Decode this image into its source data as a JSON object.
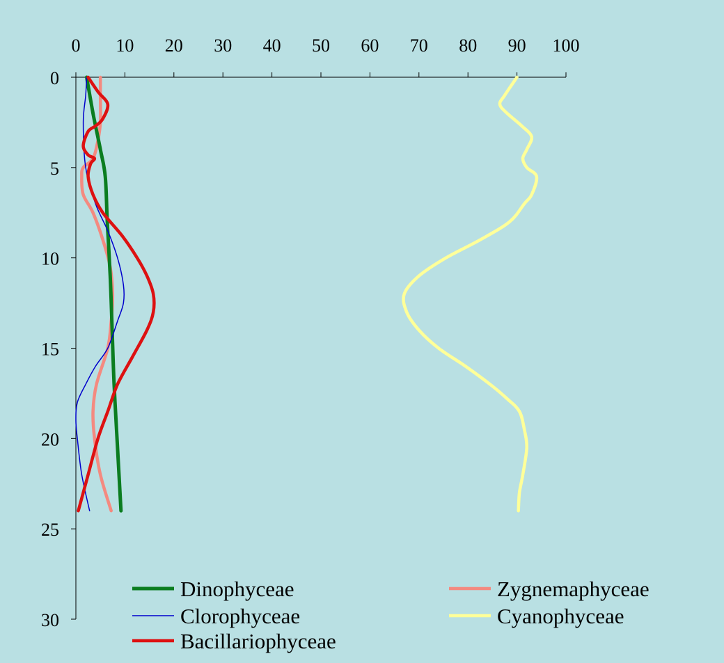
{
  "chart_data": {
    "type": "line",
    "title": "",
    "xlabel": "",
    "ylabel": "",
    "x_axis_position": "top",
    "y_axis_reversed": true,
    "xlim": [
      0,
      100
    ],
    "ylim": [
      0,
      30
    ],
    "x_ticks": [
      0,
      10,
      20,
      30,
      40,
      50,
      60,
      70,
      80,
      90,
      100
    ],
    "y_ticks": [
      0,
      5,
      10,
      15,
      20,
      25,
      30
    ],
    "x_tick_labels": [
      "0",
      "10",
      "20",
      "30",
      "40",
      "50",
      "60",
      "70",
      "80",
      "90",
      "100"
    ],
    "y_tick_labels": [
      "0",
      "5",
      "10",
      "15",
      "20",
      "25",
      "30"
    ],
    "grid": false,
    "legend_position": "bottom",
    "series": [
      {
        "name": "Dinophyceae",
        "color": "#0b7d20",
        "points": [
          [
            2.2,
            0
          ],
          [
            3.5,
            2
          ],
          [
            5,
            4
          ],
          [
            6,
            5.5
          ],
          [
            6.4,
            8
          ],
          [
            7,
            11
          ],
          [
            7.4,
            14
          ],
          [
            7.8,
            17
          ],
          [
            8.4,
            20
          ],
          [
            9.2,
            24
          ]
        ]
      },
      {
        "name": "Clorophyceae",
        "color": "#0000cc",
        "points": [
          [
            2.2,
            0
          ],
          [
            2,
            1
          ],
          [
            1.5,
            2.5
          ],
          [
            2,
            5
          ],
          [
            4,
            7
          ],
          [
            6.5,
            8.5
          ],
          [
            8.5,
            10
          ],
          [
            9.7,
            11.5
          ],
          [
            9.7,
            12.5
          ],
          [
            8.5,
            13.5
          ],
          [
            6.5,
            15
          ],
          [
            4,
            16
          ],
          [
            2,
            17
          ],
          [
            0.3,
            18
          ],
          [
            0,
            19
          ],
          [
            0.3,
            20
          ],
          [
            1.2,
            22
          ],
          [
            2.8,
            24
          ]
        ]
      },
      {
        "name": "Bacillariophyceae",
        "color": "#dd1111",
        "points": [
          [
            2.5,
            0
          ],
          [
            4.5,
            0.8
          ],
          [
            6.5,
            1.5
          ],
          [
            5.5,
            2.3
          ],
          [
            4,
            2.7
          ],
          [
            2.5,
            3
          ],
          [
            1.5,
            3.8
          ],
          [
            2.5,
            4.3
          ],
          [
            3.8,
            4.5
          ],
          [
            3,
            4.8
          ],
          [
            2.5,
            5.5
          ],
          [
            3.5,
            6.5
          ],
          [
            5.5,
            7.5
          ],
          [
            9.5,
            8.8
          ],
          [
            12.5,
            10
          ],
          [
            14.5,
            11
          ],
          [
            15.8,
            12
          ],
          [
            15.8,
            13
          ],
          [
            14.5,
            14
          ],
          [
            11.5,
            15.5
          ],
          [
            8.5,
            17
          ],
          [
            6.5,
            18.5
          ],
          [
            4.5,
            20
          ],
          [
            2.5,
            22
          ],
          [
            0.5,
            24
          ]
        ]
      },
      {
        "name": "Zygnemaphyceae",
        "color": "#f48a80",
        "points": [
          [
            5,
            0
          ],
          [
            5,
            1
          ],
          [
            5,
            2.5
          ],
          [
            4.5,
            3.5
          ],
          [
            3.5,
            4.5
          ],
          [
            1.5,
            5
          ],
          [
            1.2,
            5.5
          ],
          [
            1.5,
            6.5
          ],
          [
            3.5,
            7.5
          ],
          [
            5.5,
            9
          ],
          [
            7,
            10.5
          ],
          [
            7.5,
            12
          ],
          [
            7.2,
            13.5
          ],
          [
            6.5,
            15
          ],
          [
            4.2,
            17
          ],
          [
            3.5,
            18.5
          ],
          [
            3.8,
            20
          ],
          [
            5,
            22
          ],
          [
            7.2,
            24
          ]
        ]
      },
      {
        "name": "Cyanophyceae",
        "color": "#ffff99",
        "points": [
          [
            90,
            0
          ],
          [
            87.5,
            1
          ],
          [
            86.5,
            1.5
          ],
          [
            88,
            2
          ],
          [
            91,
            2.7
          ],
          [
            93,
            3.3
          ],
          [
            92,
            4
          ],
          [
            91.2,
            4.5
          ],
          [
            92,
            5
          ],
          [
            94,
            5.5
          ],
          [
            93,
            6.5
          ],
          [
            91.5,
            7
          ],
          [
            88.5,
            8
          ],
          [
            82.5,
            9
          ],
          [
            75.5,
            10
          ],
          [
            70,
            11
          ],
          [
            67,
            12
          ],
          [
            67.5,
            13
          ],
          [
            70,
            14
          ],
          [
            74,
            15
          ],
          [
            79.5,
            16
          ],
          [
            84.5,
            17
          ],
          [
            88,
            17.8
          ],
          [
            90.5,
            18.5
          ],
          [
            91.5,
            19.5
          ],
          [
            92,
            20.5
          ],
          [
            91.2,
            22
          ],
          [
            90.5,
            23
          ],
          [
            90.3,
            24
          ]
        ]
      }
    ]
  }
}
